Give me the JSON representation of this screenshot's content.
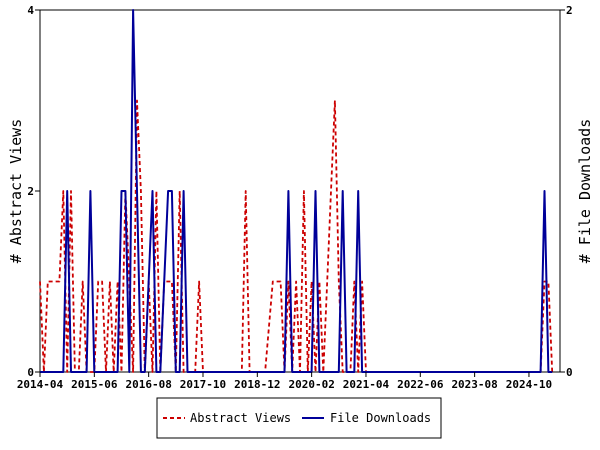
{
  "chart_data": {
    "type": "line",
    "title": "",
    "x_tick_labels": [
      "2014-04",
      "2015-06",
      "2016-08",
      "2017-10",
      "2018-12",
      "2020-02",
      "2021-04",
      "2022-06",
      "2023-08",
      "2024-10"
    ],
    "x_range": [
      "2014-04",
      "2025-06"
    ],
    "y_left": {
      "label": "# Abstract Views",
      "ticks": [
        "0",
        "2",
        "4"
      ],
      "range": [
        0,
        4
      ]
    },
    "y_right": {
      "label": "# File Downloads",
      "ticks": [
        "0",
        "2"
      ],
      "range": [
        0,
        2
      ]
    },
    "legend_position": "bottom-center",
    "grid": false,
    "series": [
      {
        "name": "Abstract Views",
        "axis": "left",
        "style": "dashed",
        "color": "#cc0000",
        "x": [
          "2014-04",
          "2014-05",
          "2014-06",
          "2014-07",
          "2014-09",
          "2014-10",
          "2014-11",
          "2014-12",
          "2015-01",
          "2015-02",
          "2015-03",
          "2015-04",
          "2015-05",
          "2015-06",
          "2015-07",
          "2015-08",
          "2015-09",
          "2015-10",
          "2015-11",
          "2015-12",
          "2016-01",
          "2016-02",
          "2016-03",
          "2016-04",
          "2016-05",
          "2016-06",
          "2016-07",
          "2016-08",
          "2016-09",
          "2016-10",
          "2016-11",
          "2016-12",
          "2017-01",
          "2017-02",
          "2017-03",
          "2017-04",
          "2017-05",
          "2017-06",
          "2017-07",
          "2017-08",
          "2017-09",
          "2017-10",
          "2017-11",
          "2017-12",
          "2018-02",
          "2018-04",
          "2018-06",
          "2018-08",
          "2018-09",
          "2018-10",
          "2018-11",
          "2018-12",
          "2019-02",
          "2019-04",
          "2019-06",
          "2019-07",
          "2019-08",
          "2019-09",
          "2019-10",
          "2019-11",
          "2019-12",
          "2020-01",
          "2020-02",
          "2020-03",
          "2020-04",
          "2020-05",
          "2020-06",
          "2020-07",
          "2020-08",
          "2020-09",
          "2020-10",
          "2020-11",
          "2020-12",
          "2021-01",
          "2021-02",
          "2021-03",
          "2021-04",
          "2021-05",
          "2021-06",
          "2021-07",
          "2021-08",
          "2022-06",
          "2023-08",
          "2024-10",
          "2025-01",
          "2025-02",
          "2025-03",
          "2025-04"
        ],
        "y": [
          1,
          0,
          1,
          1,
          1,
          2,
          0,
          2,
          0,
          0,
          1,
          0,
          0,
          0,
          1,
          1,
          0,
          1,
          0,
          1,
          0,
          2,
          1,
          0,
          3,
          2,
          0,
          1,
          0,
          2,
          0,
          1,
          1,
          1,
          0,
          2,
          0,
          0,
          0,
          0,
          1,
          0,
          0,
          0,
          0,
          0,
          0,
          0,
          2,
          0,
          0,
          0,
          0,
          1,
          1,
          0,
          1,
          0,
          1,
          0,
          2,
          0,
          1,
          0,
          1,
          0,
          1,
          2,
          3,
          1,
          0,
          0,
          0,
          1,
          0,
          1,
          0,
          0,
          0,
          0,
          0,
          0,
          0,
          0,
          0,
          1,
          1,
          0
        ]
      },
      {
        "name": "File Downloads",
        "axis": "right",
        "style": "solid",
        "color": "#000099",
        "x": [
          "2014-04",
          "2014-10",
          "2014-11",
          "2014-12",
          "2015-02",
          "2015-03",
          "2015-04",
          "2015-05",
          "2015-06",
          "2015-12",
          "2016-01",
          "2016-02",
          "2016-03",
          "2016-04",
          "2016-05",
          "2016-06",
          "2016-07",
          "2016-09",
          "2016-10",
          "2016-11",
          "2017-01",
          "2017-02",
          "2017-03",
          "2017-04",
          "2017-05",
          "2017-06",
          "2017-07",
          "2017-08",
          "2017-09",
          "2017-10",
          "2017-11",
          "2019-06",
          "2019-07",
          "2019-08",
          "2019-09",
          "2019-10",
          "2019-11",
          "2020-01",
          "2020-02",
          "2020-03",
          "2020-04",
          "2020-05",
          "2020-06",
          "2020-07",
          "2020-08",
          "2020-09",
          "2020-10",
          "2020-11",
          "2020-12",
          "2021-01",
          "2021-02",
          "2021-03",
          "2021-04",
          "2021-05",
          "2021-06",
          "2025-01",
          "2025-02",
          "2025-03",
          "2025-04"
        ],
        "y": [
          0,
          0,
          1,
          0,
          0,
          0,
          0,
          1,
          0,
          0,
          1,
          1,
          0,
          2,
          1,
          0,
          0,
          1,
          0,
          0,
          1,
          1,
          0,
          0,
          1,
          0,
          0,
          0,
          0,
          0,
          0,
          0,
          0,
          1,
          0,
          0,
          0,
          0,
          0,
          1,
          0,
          0,
          0,
          0,
          0,
          0,
          1,
          0,
          0,
          0,
          1,
          0,
          0,
          0,
          0,
          0,
          1,
          0,
          0
        ]
      }
    ]
  }
}
